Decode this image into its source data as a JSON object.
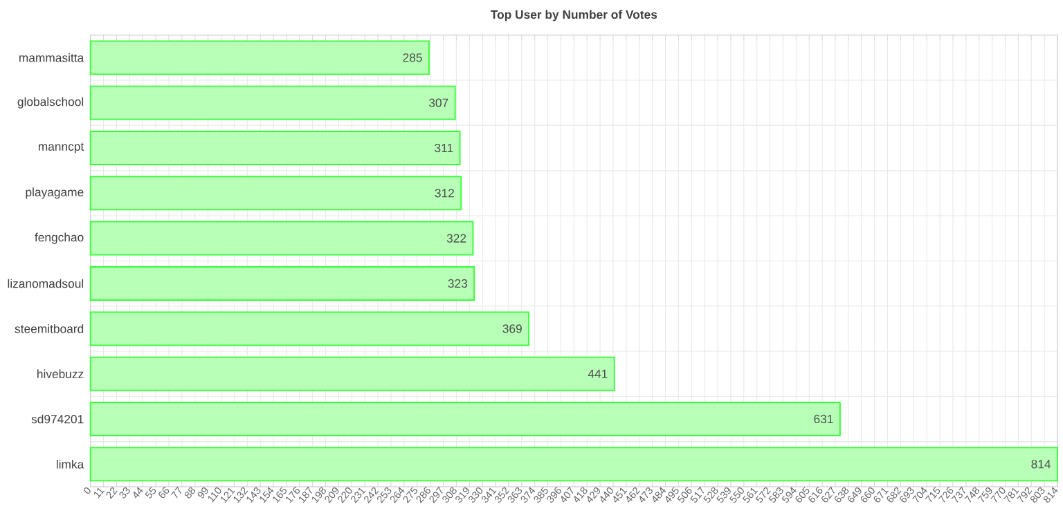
{
  "chart_data": {
    "type": "bar",
    "orientation": "horizontal",
    "title": "Top User by Number of Votes",
    "categories": [
      "mammasitta",
      "globalschool",
      "manncpt",
      "playagame",
      "fengchao",
      "lizanomadsoul",
      "steemitboard",
      "hivebuzz",
      "sd974201",
      "limka"
    ],
    "values": [
      285,
      307,
      311,
      312,
      322,
      323,
      369,
      441,
      631,
      814
    ],
    "color": "#33ff33",
    "data_labels": true,
    "grid": true,
    "xlim": [
      0,
      814
    ],
    "xticks": [
      0,
      11,
      22,
      33,
      44,
      55,
      66,
      77,
      88,
      99,
      110,
      121,
      132,
      143,
      154,
      165,
      176,
      187,
      198,
      209,
      220,
      231,
      242,
      253,
      264,
      275,
      286,
      297,
      308,
      319,
      330,
      341,
      352,
      363,
      374,
      385,
      396,
      407,
      418,
      429,
      440,
      451,
      462,
      473,
      484,
      495,
      506,
      517,
      528,
      539,
      550,
      561,
      572,
      583,
      594,
      605,
      616,
      627,
      638,
      649,
      660,
      671,
      682,
      693,
      704,
      715,
      726,
      737,
      748,
      759,
      770,
      781,
      792,
      803,
      814
    ]
  }
}
